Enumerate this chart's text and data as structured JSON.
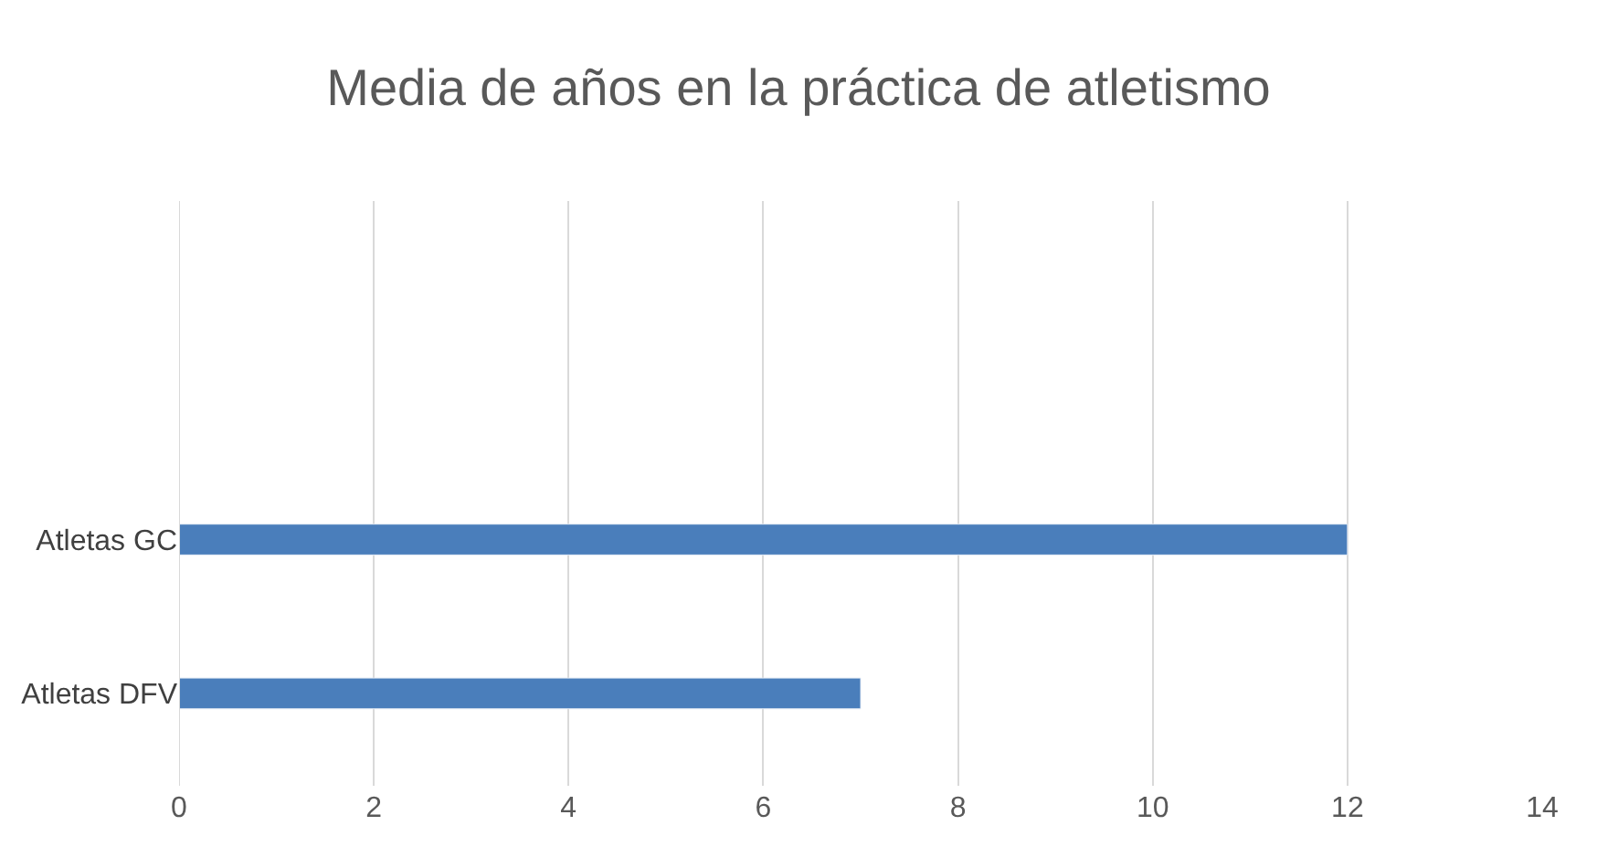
{
  "chart_data": {
    "type": "bar",
    "orientation": "horizontal",
    "title": "Media de años en la práctica de atletismo",
    "categories": [
      "Atletas GC",
      "Atletas DFV"
    ],
    "series": [
      {
        "color": "#4a7ebb",
        "values": [
          12,
          7
        ]
      }
    ],
    "xlim": [
      0,
      14
    ],
    "xticks": [
      0,
      2,
      4,
      6,
      8,
      10,
      12,
      14
    ],
    "grid": "x",
    "legend": false
  }
}
